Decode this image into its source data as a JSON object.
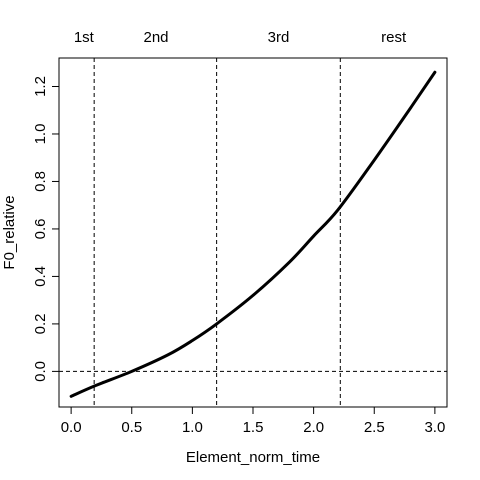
{
  "chart_data": {
    "type": "line",
    "xlabel": "Element_norm_time",
    "ylabel": "F0_relative",
    "xlim": [
      -0.1,
      3.1
    ],
    "ylim": [
      -0.15,
      1.32
    ],
    "x_ticks": [
      "0.0",
      "0.5",
      "1.0",
      "1.5",
      "2.0",
      "2.5",
      "3.0"
    ],
    "y_ticks": [
      "0.0",
      "0.2",
      "0.4",
      "0.6",
      "0.8",
      "1.0",
      "1.2"
    ],
    "grid": false,
    "series": [
      {
        "x": [
          0.0,
          0.2,
          0.5,
          0.8,
          1.0,
          1.2,
          1.5,
          1.8,
          2.0,
          2.2,
          2.5,
          2.8,
          3.0
        ],
        "y": [
          -0.105,
          -0.06,
          0.0,
          0.07,
          0.13,
          0.2,
          0.32,
          0.46,
          0.57,
          0.68,
          0.89,
          1.11,
          1.26
        ]
      }
    ],
    "reference_lines": {
      "vertical_x": [
        0.19,
        1.2,
        2.22
      ],
      "horizontal_y": [
        0.0
      ]
    },
    "segments": [
      {
        "label": "1st",
        "x": 0.105
      },
      {
        "label": "2nd",
        "x": 0.7
      },
      {
        "label": "3rd",
        "x": 1.71
      },
      {
        "label": "rest",
        "x": 2.66
      }
    ]
  }
}
